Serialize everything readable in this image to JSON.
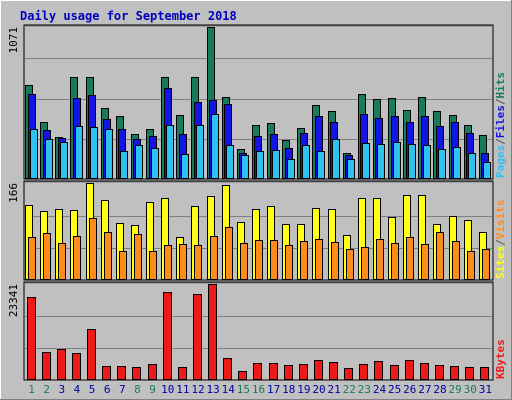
{
  "chart_data": {
    "type": "bar",
    "title": "Daily usage for September 2018",
    "colors": {
      "title": "#0000c0",
      "background": "#c0c0c0",
      "hits": "#1a7a5e",
      "files": "#1414e6",
      "pages": "#2ec2f0",
      "visits": "#ff8a1e",
      "sites": "#ffff18",
      "kbytes": "#ee1a1a",
      "weekend_label": "#1a7a5e",
      "weekday_label": "#0000a0"
    },
    "categories": [
      "1",
      "2",
      "3",
      "4",
      "5",
      "6",
      "7",
      "8",
      "9",
      "10",
      "11",
      "12",
      "13",
      "14",
      "15",
      "16",
      "17",
      "18",
      "19",
      "20",
      "21",
      "22",
      "23",
      "24",
      "25",
      "26",
      "27",
      "28",
      "29",
      "30",
      "31"
    ],
    "weekend_days": [
      "1",
      "2",
      "8",
      "9",
      "15",
      "16",
      "22",
      "23",
      "29",
      "30"
    ],
    "panels": [
      {
        "id": "hits-files-pages",
        "ymax_label": "1071",
        "ymax": 1071,
        "grid_values": [
          283,
          567,
          850
        ],
        "legend": [
          {
            "text": "Hits",
            "color": "#1a7a5e"
          },
          {
            "text": "/",
            "color": "#555555"
          },
          {
            "text": "Files",
            "color": "#1414e6"
          },
          {
            "text": "/",
            "color": "#555555"
          },
          {
            "text": "Pages",
            "color": "#2ec2f0"
          }
        ],
        "series": [
          {
            "name": "Hits",
            "color": "#1a7a5e",
            "values": [
              664,
              401,
              296,
              720,
              720,
              498,
              443,
              317,
              352,
              720,
              450,
              720,
              1071,
              578,
              212,
              384,
              392,
              272,
              360,
              520,
              478,
              186,
              596,
              564,
              573,
              488,
              579,
              482,
              453,
              380,
              312
            ]
          },
          {
            "name": "Files",
            "color": "#1414e6",
            "values": [
              601,
              346,
              287,
              574,
              590,
              426,
              352,
              284,
              306,
              640,
              316,
              540,
              557,
              525,
              183,
              300,
              320,
              215,
              324,
              445,
              403,
              170,
              455,
              431,
              446,
              404,
              444,
              376,
              400,
              327,
              183
            ]
          },
          {
            "name": "Pages",
            "color": "#2ec2f0",
            "values": [
              351,
              282,
              263,
              375,
              363,
              355,
              195,
              240,
              220,
              379,
              178,
              383,
              455,
              238,
              170,
              200,
              205,
              141,
              241,
              195,
              280,
              140,
              253,
              250,
              260,
              250,
              240,
              213,
              225,
              186,
              122
            ]
          }
        ]
      },
      {
        "id": "visits-sites",
        "ymax_label": "166",
        "ymax": 166,
        "grid_values": [
          55,
          110
        ],
        "legend": [
          {
            "text": "Visits",
            "color": "#ff8a1e"
          },
          {
            "text": "/",
            "color": "#555555"
          },
          {
            "text": "Sites",
            "color": "#ffff18"
          }
        ],
        "series": [
          {
            "name": "Sites",
            "color": "#ffff18",
            "values": [
              128,
              118,
              121,
              119,
              166,
              137,
              97,
              94,
              133,
              141,
              74,
              127,
              143,
              162,
              100,
              122,
              126,
              96,
              96,
              123,
              122,
              77,
              140,
              140,
              108,
              146,
              146,
              96,
              110,
              103,
              82
            ]
          },
          {
            "name": "Visits",
            "color": "#ff8a1e",
            "values": [
              74,
              80,
              64,
              75,
              106,
              83,
              49,
              79,
              50,
              60,
              62,
              60,
              76,
              91,
              63,
              68,
              68,
              60,
              67,
              71,
              65,
              53,
              56,
              71,
              63,
              73,
              61,
              82,
              67,
              50,
              53
            ]
          }
        ]
      },
      {
        "id": "kbytes",
        "ymax_label": "23341",
        "ymax": 23341,
        "grid_values": [
          7780,
          15561
        ],
        "legend": [
          {
            "text": "KBytes",
            "color": "#ee1a1a"
          }
        ],
        "series": [
          {
            "name": "KBytes",
            "color": "#ee1a1a",
            "values": [
              20300,
              6912,
              7616,
              6512,
              12430,
              3296,
              3310,
              3100,
              3880,
              21340,
              3220,
              20890,
              23341,
              5250,
              2276,
              4056,
              4112,
              3592,
              3890,
              4776,
              4390,
              3016,
              3776,
              4670,
              3526,
              4940,
              4104,
              3606,
              3400,
              3096,
              3106
            ]
          }
        ]
      }
    ]
  }
}
